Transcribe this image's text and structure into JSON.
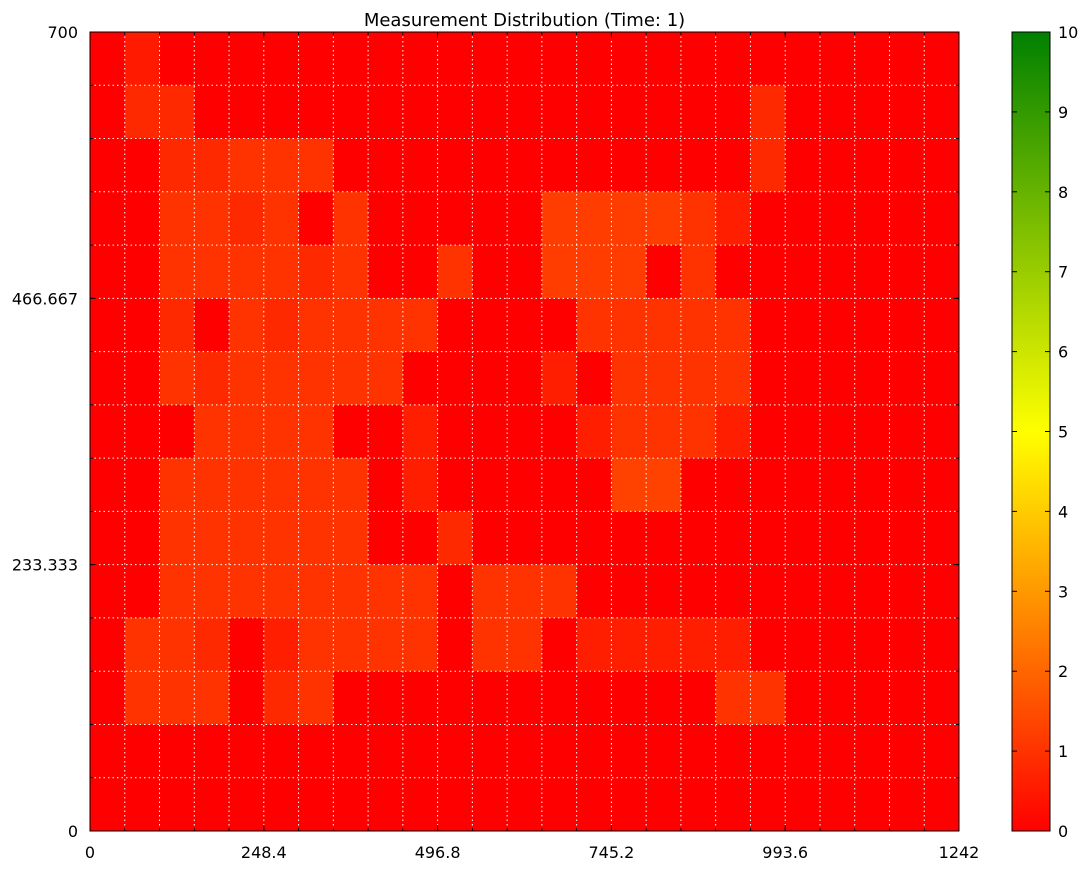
{
  "chart_data": {
    "type": "heatmap",
    "title": "Measurement Distribution (Time: 1)",
    "xlabel": "",
    "ylabel": "",
    "xlim": [
      0,
      1242
    ],
    "ylim": [
      0,
      700
    ],
    "x_ticks": [
      "0",
      "248.4",
      "496.8",
      "745.2",
      "993.6",
      "1242"
    ],
    "y_ticks": [
      "0",
      "233.333",
      "466.667",
      "700"
    ],
    "grid": true,
    "n_cols": 25,
    "n_rows": 15,
    "rows_top_to_bottom": [
      [
        0,
        0.5,
        0,
        0,
        0,
        0,
        0,
        0,
        0,
        0,
        0,
        0,
        0,
        0,
        0,
        0,
        0,
        0,
        0,
        0,
        0,
        0,
        0,
        0,
        0
      ],
      [
        0,
        0.8,
        0.8,
        0,
        0,
        0,
        0,
        0,
        0,
        0,
        0,
        0,
        0,
        0,
        0,
        0,
        0,
        0,
        0,
        0.8,
        0,
        0,
        0,
        0,
        0
      ],
      [
        0,
        0,
        0.8,
        0.8,
        1,
        1,
        1,
        0,
        0,
        0,
        0,
        0,
        0,
        0,
        0,
        0,
        0,
        0,
        0,
        0.8,
        0,
        0,
        0,
        0,
        0
      ],
      [
        0,
        0,
        1,
        1,
        0.8,
        1,
        0,
        1,
        0,
        0,
        0,
        0,
        0,
        1.2,
        1.2,
        1.2,
        1.2,
        1,
        0.6,
        0,
        0,
        0,
        0,
        0,
        0
      ],
      [
        0,
        0,
        1,
        1,
        1,
        1,
        0.8,
        1,
        0,
        0,
        1,
        0,
        0,
        1.2,
        1.2,
        1.2,
        0,
        1,
        0,
        0,
        0,
        0,
        0,
        0,
        0
      ],
      [
        0,
        0,
        0.8,
        0,
        1,
        0.8,
        1,
        1,
        1,
        1,
        0,
        0,
        0,
        0,
        1,
        1,
        1,
        1,
        1,
        0,
        0,
        0,
        0,
        0,
        0
      ],
      [
        0,
        0,
        1,
        0.8,
        1,
        1,
        1,
        1,
        1,
        0,
        0,
        0,
        0,
        0.6,
        0,
        1,
        1,
        1,
        1,
        0,
        0,
        0,
        0,
        0,
        0
      ],
      [
        0,
        0,
        0,
        1,
        1,
        1,
        1,
        0,
        0,
        0.6,
        0,
        0,
        0,
        0,
        0.6,
        1,
        1,
        1,
        0.6,
        0,
        0,
        0,
        0,
        0,
        0
      ],
      [
        0,
        0,
        1,
        1,
        1,
        1,
        1,
        1,
        0,
        0.6,
        0,
        0,
        0,
        0,
        0,
        1.3,
        1.3,
        0,
        0,
        0,
        0,
        0,
        0,
        0,
        0
      ],
      [
        0,
        0,
        1,
        1,
        1,
        1,
        1,
        1,
        0,
        0,
        0.8,
        0,
        0,
        0,
        0,
        0,
        0,
        0,
        0,
        0,
        0,
        0,
        0,
        0,
        0
      ],
      [
        0,
        0,
        1,
        1,
        1,
        1,
        1,
        1,
        1,
        1,
        0,
        1,
        1,
        1,
        0,
        0,
        0,
        0,
        0,
        0,
        0,
        0,
        0,
        0,
        0
      ],
      [
        0,
        1,
        1,
        0.8,
        0,
        0.6,
        1,
        1,
        1,
        1,
        0,
        1,
        1,
        0,
        0.6,
        0.6,
        0.6,
        0.6,
        0.6,
        0,
        0,
        0,
        0,
        0,
        0
      ],
      [
        0,
        1,
        1,
        1,
        0,
        0.8,
        1,
        0,
        0,
        0,
        0,
        0,
        0,
        0,
        0,
        0,
        0,
        0,
        1,
        1,
        0,
        0,
        0,
        0,
        0
      ],
      [
        0,
        0,
        0,
        0,
        0,
        0,
        0,
        0,
        0,
        0,
        0,
        0,
        0,
        0,
        0,
        0,
        0,
        0,
        0,
        0,
        0,
        0,
        0,
        0,
        0
      ],
      [
        0,
        0,
        0,
        0,
        0,
        0,
        0,
        0,
        0,
        0,
        0,
        0,
        0,
        0,
        0,
        0,
        0,
        0,
        0,
        0,
        0,
        0,
        0,
        0,
        0
      ]
    ],
    "colorbar": {
      "range": [
        0,
        10
      ],
      "ticks": [
        "0",
        "1",
        "2",
        "3",
        "4",
        "5",
        "6",
        "7",
        "8",
        "9",
        "10"
      ],
      "colors": [
        "#ff0000",
        "#ffff00",
        "#008000"
      ]
    }
  }
}
